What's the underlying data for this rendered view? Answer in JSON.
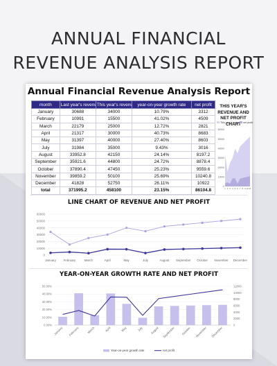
{
  "hero": {
    "title_line1": "ANNUAL FINANCIAL",
    "title_line2": "REVENUE ANALYSIS REPORT"
  },
  "sheet": {
    "title": "Annual Financial Revenue Analysis Report"
  },
  "table": {
    "headers": [
      "month",
      "Last year's revenue",
      "This year's revenue",
      "year-on-year growth rate",
      "net profit"
    ],
    "rows": [
      [
        "January",
        "30688",
        "34000",
        "10.79%",
        "3312"
      ],
      [
        "February",
        "10991",
        "15500",
        "41.02%",
        "4509"
      ],
      [
        "March",
        "22179",
        "25000",
        "12.72%",
        "2821"
      ],
      [
        "April",
        "21317",
        "30000",
        "40.73%",
        "8683"
      ],
      [
        "May",
        "31397",
        "40000",
        "27.40%",
        "8603"
      ],
      [
        "July",
        "31984",
        "35000",
        "9.43%",
        "3016"
      ],
      [
        "August",
        "33952.8",
        "42150",
        "24.14%",
        "8197.2"
      ],
      [
        "September",
        "35921.6",
        "44800",
        "24.72%",
        "8878.4"
      ],
      [
        "October",
        "37890.4",
        "47450",
        "25.23%",
        "9559.6"
      ],
      [
        "November",
        "39859.2",
        "50100",
        "25.69%",
        "10240.8"
      ],
      [
        "December",
        "41828",
        "52750",
        "26.11%",
        "10922"
      ]
    ],
    "total": [
      "total",
      "371995.2",
      "458100",
      "23.15%",
      "86104.8"
    ]
  },
  "mini_chart": {
    "title": "THIS YEAR'S REVENUE AND NET PROFIT CHART",
    "legend": [
      "This year's revenue",
      "net profit"
    ]
  },
  "line_chart": {
    "title": "LINE CHART OF REVENUE AND NET PROFIT"
  },
  "bar_chart": {
    "title": "YEAR-ON-YEAR GROWTH RATE AND NET PROFIT",
    "legend": [
      "Year-on-year growth rate",
      "net profit"
    ]
  },
  "colors": {
    "header_bg": "#2e2a86",
    "revenue_line": "#a9a2dd",
    "profit_line": "#3d3799",
    "bar_fill": "#c5c1ec",
    "area_light": "#d6d2f1",
    "area_dark": "#b3acdf"
  },
  "chart_data": [
    {
      "type": "area",
      "title": "THIS YEAR'S REVENUE AND NET PROFIT CHART",
      "x": [
        "1",
        "2",
        "3",
        "4",
        "5",
        "6",
        "7",
        "8",
        "9",
        "10",
        "11"
      ],
      "series": [
        {
          "name": "This year's revenue",
          "values": [
            34000,
            15500,
            25000,
            30000,
            40000,
            35000,
            42150,
            44800,
            47450,
            50100,
            52750
          ]
        },
        {
          "name": "net profit",
          "values": [
            3312,
            4509,
            2821,
            8683,
            8603,
            3016,
            8197.2,
            8878.4,
            9559.6,
            10240.8,
            10922
          ]
        }
      ],
      "yticks": [
        "60000",
        "50000",
        "40000",
        "30000",
        "20000",
        "10000",
        "0"
      ],
      "ylim": [
        0,
        60000
      ],
      "legend": "top"
    },
    {
      "type": "line",
      "title": "LINE CHART OF REVENUE AND NET PROFIT",
      "categories": [
        "January",
        "February",
        "March",
        "April",
        "May",
        "July",
        "August",
        "September",
        "October",
        "November",
        "December"
      ],
      "series": [
        {
          "name": "This year's revenue",
          "values": [
            34000,
            15500,
            25000,
            30000,
            40000,
            35000,
            42150,
            44800,
            47450,
            50100,
            52750
          ]
        },
        {
          "name": "net profit",
          "values": [
            3312,
            4509,
            2821,
            8683,
            8603,
            3016,
            8197.2,
            8878.4,
            9559.6,
            10240.8,
            10922
          ]
        }
      ],
      "yticks": [
        "60000",
        "50000",
        "40000",
        "30000",
        "20000",
        "10000",
        "0"
      ],
      "ylim": [
        0,
        60000
      ],
      "grid": true
    },
    {
      "type": "bar",
      "title": "YEAR-ON-YEAR GROWTH RATE AND NET PROFIT",
      "categories": [
        "January",
        "February",
        "March",
        "April",
        "May",
        "July",
        "August",
        "September",
        "October",
        "November",
        "December"
      ],
      "series": [
        {
          "name": "Year-on-year growth rate",
          "values": [
            10.79,
            41.02,
            12.72,
            40.73,
            27.4,
            9.43,
            24.14,
            24.72,
            25.23,
            25.69,
            26.11
          ]
        },
        {
          "name": "net profit",
          "values": [
            3312,
            4509,
            2821,
            8683,
            8603,
            3016,
            8197.2,
            8878.4,
            9559.6,
            10240.8,
            10922
          ]
        }
      ],
      "yticks_left": [
        "50.00%",
        "40.00%",
        "30.00%",
        "20.00%",
        "10.00%",
        "0.00%"
      ],
      "yticks_right": [
        "12000",
        "10000",
        "8000",
        "6000",
        "4000",
        "2000",
        "0"
      ],
      "ylim_left": [
        0,
        50
      ],
      "ylim_right": [
        0,
        12000
      ],
      "legend": "bottom"
    }
  ]
}
